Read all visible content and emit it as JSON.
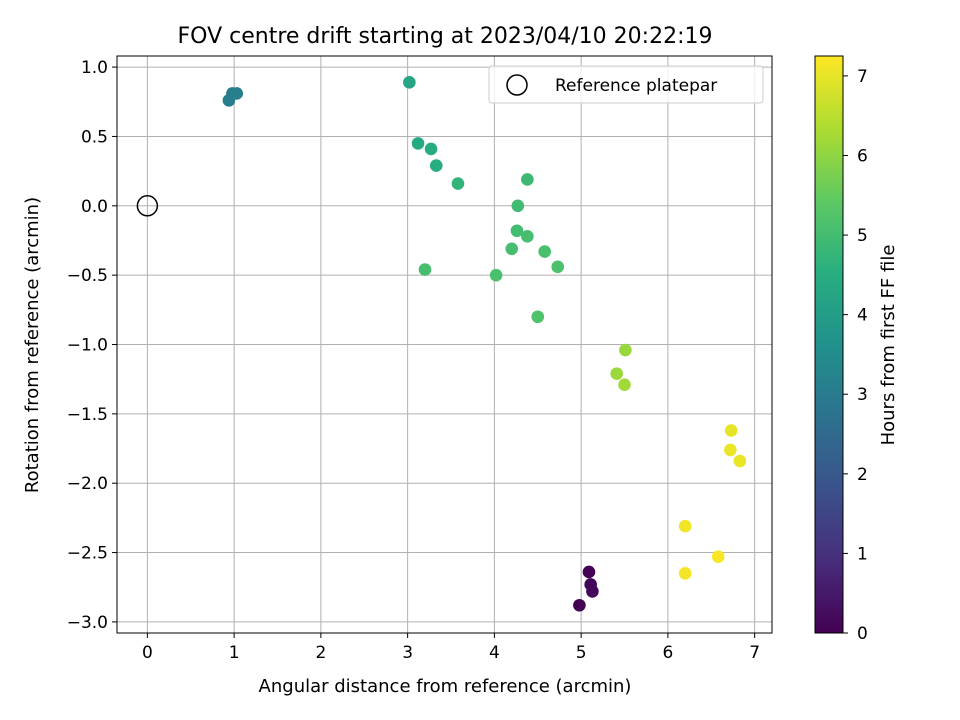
{
  "chart_data": {
    "type": "scatter",
    "title": "FOV centre drift starting at 2023/04/10 20:22:19",
    "xlabel": "Angular distance from reference (arcmin)",
    "ylabel": "Rotation from reference (arcmin)",
    "xlim": [
      -0.35,
      7.2
    ],
    "ylim": [
      -3.08,
      1.08
    ],
    "xticks": [
      0,
      1,
      2,
      3,
      4,
      5,
      6,
      7
    ],
    "xtick_labels": [
      "0",
      "1",
      "2",
      "3",
      "4",
      "5",
      "6",
      "7"
    ],
    "yticks": [
      1.0,
      0.5,
      0.0,
      -0.5,
      -1.0,
      -1.5,
      -2.0,
      -2.5,
      -3.0
    ],
    "ytick_labels": [
      "1.0",
      "0.5",
      "0.0",
      "−0.5",
      "−1.0",
      "−1.5",
      "−2.0",
      "−2.5",
      "−3.0"
    ],
    "grid": true,
    "legend": {
      "position": "top-right",
      "entries": [
        "Reference platepar"
      ]
    },
    "reference_point": {
      "x": 0.0,
      "y": 0.0
    },
    "colorbar": {
      "label": "Hours from first FF file",
      "colormap": "viridis",
      "range": [
        0,
        7.25
      ],
      "ticks": [
        0,
        1,
        2,
        3,
        4,
        5,
        6,
        7
      ],
      "tick_labels": [
        "0",
        "1",
        "2",
        "3",
        "4",
        "5",
        "6",
        "7"
      ]
    },
    "points": [
      {
        "x": 4.98,
        "y": -2.88,
        "hours": 0.0
      },
      {
        "x": 5.09,
        "y": -2.64,
        "hours": 0.05
      },
      {
        "x": 5.11,
        "y": -2.73,
        "hours": 0.1
      },
      {
        "x": 5.13,
        "y": -2.78,
        "hours": 0.15
      },
      {
        "x": 0.94,
        "y": 0.76,
        "hours": 3.0
      },
      {
        "x": 0.98,
        "y": 0.81,
        "hours": 3.05
      },
      {
        "x": 1.03,
        "y": 0.81,
        "hours": 3.1
      },
      {
        "x": 3.02,
        "y": 0.89,
        "hours": 4.25
      },
      {
        "x": 3.12,
        "y": 0.45,
        "hours": 4.4
      },
      {
        "x": 3.27,
        "y": 0.41,
        "hours": 4.45
      },
      {
        "x": 3.33,
        "y": 0.29,
        "hours": 4.5
      },
      {
        "x": 3.58,
        "y": 0.16,
        "hours": 4.7
      },
      {
        "x": 4.38,
        "y": 0.19,
        "hours": 4.9
      },
      {
        "x": 4.27,
        "y": 0.0,
        "hours": 4.95
      },
      {
        "x": 4.26,
        "y": -0.18,
        "hours": 5.0
      },
      {
        "x": 4.38,
        "y": -0.22,
        "hours": 5.05
      },
      {
        "x": 4.2,
        "y": -0.31,
        "hours": 5.05
      },
      {
        "x": 4.58,
        "y": -0.33,
        "hours": 5.1
      },
      {
        "x": 4.73,
        "y": -0.44,
        "hours": 5.15
      },
      {
        "x": 4.02,
        "y": -0.5,
        "hours": 5.1
      },
      {
        "x": 3.2,
        "y": -0.46,
        "hours": 5.05
      },
      {
        "x": 4.5,
        "y": -0.8,
        "hours": 5.2
      },
      {
        "x": 5.51,
        "y": -1.04,
        "hours": 6.1
      },
      {
        "x": 5.41,
        "y": -1.21,
        "hours": 6.15
      },
      {
        "x": 5.5,
        "y": -1.29,
        "hours": 6.2
      },
      {
        "x": 6.73,
        "y": -1.62,
        "hours": 7.0
      },
      {
        "x": 6.72,
        "y": -1.76,
        "hours": 7.05
      },
      {
        "x": 6.83,
        "y": -1.84,
        "hours": 7.05
      },
      {
        "x": 6.2,
        "y": -2.31,
        "hours": 7.1
      },
      {
        "x": 6.2,
        "y": -2.65,
        "hours": 7.15
      },
      {
        "x": 6.58,
        "y": -2.53,
        "hours": 7.2
      }
    ]
  }
}
